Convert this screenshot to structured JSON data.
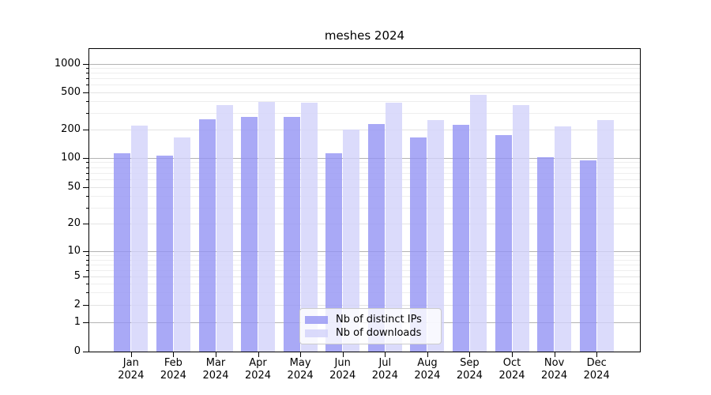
{
  "title": "meshes 2024",
  "chart_data": {
    "type": "bar",
    "title": "meshes 2024",
    "categories": [
      "Jan 2024",
      "Feb 2024",
      "Mar 2024",
      "Apr 2024",
      "May 2024",
      "Jun 2024",
      "Jul 2024",
      "Aug 2024",
      "Sep 2024",
      "Oct 2024",
      "Nov 2024",
      "Dec 2024"
    ],
    "series": [
      {
        "name": "Nb of distinct IPs",
        "color": "#9494f4",
        "values": [
          112,
          105,
          258,
          273,
          270,
          112,
          228,
          165,
          225,
          175,
          102,
          94
        ]
      },
      {
        "name": "Nb of downloads",
        "color": "#d2d2fa",
        "values": [
          218,
          164,
          362,
          390,
          383,
          198,
          385,
          252,
          465,
          360,
          215,
          252
        ]
      }
    ],
    "xlabel": "",
    "ylabel": "",
    "yscale": "symlog",
    "yticks": [
      0,
      1,
      2,
      5,
      10,
      20,
      50,
      100,
      200,
      500,
      1000
    ],
    "minor_yticks": [
      3,
      4,
      6,
      7,
      8,
      9,
      30,
      40,
      60,
      70,
      80,
      90,
      300,
      400,
      600,
      700,
      800,
      900
    ],
    "ylim": [
      0,
      1300
    ],
    "grid": true,
    "legend_position": "lower center",
    "bar_opacity": 0.8,
    "grid_color_major": "#b3b3b3",
    "grid_color_mid": "#e3e3e3",
    "grid_color_minor": "#eeeeee"
  }
}
